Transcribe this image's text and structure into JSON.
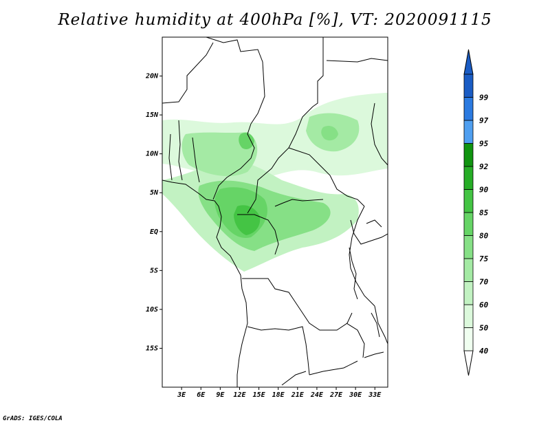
{
  "title": "Relative humidity at 400hPa [%], VT: 2020091115",
  "credit": "GrADS: IGES/COLA",
  "map": {
    "lon_range": [
      0,
      35
    ],
    "lat_range": [
      -20,
      25
    ],
    "lat_ticks": [
      {
        "value": 20,
        "label": "20N"
      },
      {
        "value": 15,
        "label": "15N"
      },
      {
        "value": 10,
        "label": "10N"
      },
      {
        "value": 5,
        "label": "5N"
      },
      {
        "value": 0,
        "label": "EQ"
      },
      {
        "value": -5,
        "label": "5S"
      },
      {
        "value": -10,
        "label": "10S"
      },
      {
        "value": -15,
        "label": "15S"
      }
    ],
    "lon_ticks": [
      {
        "value": 3,
        "label": "3E"
      },
      {
        "value": 6,
        "label": "6E"
      },
      {
        "value": 9,
        "label": "9E"
      },
      {
        "value": 12,
        "label": "12E"
      },
      {
        "value": 15,
        "label": "15E"
      },
      {
        "value": 18,
        "label": "18E"
      },
      {
        "value": 21,
        "label": "21E"
      },
      {
        "value": 24,
        "label": "24E"
      },
      {
        "value": 27,
        "label": "27E"
      },
      {
        "value": 30,
        "label": "30E"
      },
      {
        "value": 33,
        "label": "33E"
      }
    ]
  },
  "colorbar": {
    "levels": [
      {
        "label": "40",
        "color": "#f0fff0"
      },
      {
        "label": "50",
        "color": "#dcf9dc"
      },
      {
        "label": "60",
        "color": "#c2f2c2"
      },
      {
        "label": "70",
        "color": "#a4eaa4"
      },
      {
        "label": "75",
        "color": "#86e086"
      },
      {
        "label": "80",
        "color": "#66d466"
      },
      {
        "label": "85",
        "color": "#44c444"
      },
      {
        "label": "90",
        "color": "#26ad26"
      },
      {
        "label": "92",
        "color": "#109410"
      },
      {
        "label": "95",
        "color": "#4f9ff0"
      },
      {
        "label": "97",
        "color": "#2b7ae0"
      },
      {
        "label": "99",
        "color": "#1a5cc4"
      }
    ],
    "below_color": "#ffffff",
    "above_color": "#1a5cc4"
  }
}
